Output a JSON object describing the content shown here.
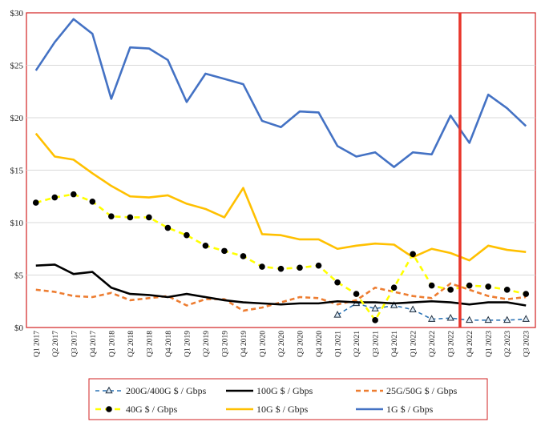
{
  "chart_data": {
    "type": "line",
    "title": "",
    "xlabel": "",
    "ylabel": "",
    "ylim": [
      0,
      30
    ],
    "y_ticks": [
      "$0",
      "$5",
      "$10",
      "$15",
      "$20",
      "$25",
      "$30"
    ],
    "grid": "horizontal",
    "legend_position": "bottom",
    "categories": [
      "Q1 2017",
      "Q2 2017",
      "Q3 2017",
      "Q4 2017",
      "Q1 2018",
      "Q2 2018",
      "Q3 2018",
      "Q4 2018",
      "Q1 2019",
      "Q2 2019",
      "Q3 2019",
      "Q4 2019",
      "Q1 2020",
      "Q2 2020",
      "Q3 2020",
      "Q4 2020",
      "Q1 2021",
      "Q2 2021",
      "Q3 2021",
      "Q4 2021",
      "Q1 2022",
      "Q2 2022",
      "Q3 2022",
      "Q4 2022",
      "Q1 2023",
      "Q2 2023",
      "Q3 2023"
    ],
    "vertical_marker": {
      "between": [
        "Q3 2022",
        "Q4 2022"
      ],
      "color": "#E8352A"
    },
    "series": [
      {
        "name": "200G/400G $ / Gbps",
        "color": "#2E75B6",
        "style": "dashed-triangle",
        "values": [
          null,
          null,
          null,
          null,
          null,
          null,
          null,
          null,
          null,
          null,
          null,
          null,
          null,
          null,
          null,
          null,
          1.2,
          2.3,
          1.8,
          2.1,
          1.7,
          0.8,
          0.9,
          0.7,
          0.7,
          0.7,
          0.8
        ]
      },
      {
        "name": "100G $ / Gbps",
        "color": "#000000",
        "style": "solid-thick",
        "values": [
          5.9,
          6.0,
          5.1,
          5.3,
          3.8,
          3.2,
          3.1,
          2.9,
          3.2,
          2.9,
          2.6,
          2.4,
          2.3,
          2.2,
          2.3,
          2.3,
          2.5,
          2.4,
          2.4,
          2.3,
          2.4,
          2.5,
          2.4,
          2.2,
          2.4,
          2.4,
          2.1
        ]
      },
      {
        "name": "25G/50G $ / Gbps",
        "color": "#ED7D31",
        "style": "dashed",
        "values": [
          3.6,
          3.4,
          3.0,
          2.9,
          3.3,
          2.6,
          2.8,
          3.0,
          2.1,
          2.7,
          2.7,
          1.6,
          1.9,
          2.4,
          2.9,
          2.8,
          2.2,
          2.6,
          3.8,
          3.4,
          3.0,
          2.8,
          4.2,
          3.6,
          3.0,
          2.7,
          2.9
        ]
      },
      {
        "name": "40G $ / Gbps",
        "color": "#FFFF00",
        "style": "dashed-circle",
        "values": [
          11.9,
          12.4,
          12.7,
          12.0,
          10.6,
          10.5,
          10.5,
          9.5,
          8.8,
          7.8,
          7.3,
          6.8,
          5.8,
          5.6,
          5.7,
          5.9,
          4.3,
          3.2,
          0.7,
          3.8,
          7.0,
          4.0,
          3.6,
          4.0,
          3.9,
          3.6,
          3.2
        ]
      },
      {
        "name": "10G $ / Gbps",
        "color": "#FFC000",
        "style": "solid",
        "values": [
          18.5,
          16.3,
          16.0,
          14.7,
          13.5,
          12.5,
          12.4,
          12.6,
          11.8,
          11.3,
          10.5,
          13.3,
          8.9,
          8.8,
          8.4,
          8.4,
          7.5,
          7.8,
          8.0,
          7.9,
          6.7,
          7.5,
          7.1,
          6.4,
          7.8,
          7.4,
          7.2
        ]
      },
      {
        "name": "1G $ / Gbps",
        "color": "#4472C4",
        "style": "solid",
        "values": [
          24.5,
          27.2,
          29.4,
          28.0,
          21.8,
          26.7,
          26.6,
          25.5,
          21.5,
          24.2,
          23.7,
          23.2,
          19.7,
          19.1,
          20.6,
          20.5,
          17.3,
          16.3,
          16.7,
          15.3,
          16.7,
          16.5,
          20.2,
          17.6,
          22.2,
          20.9,
          19.2
        ]
      }
    ]
  }
}
